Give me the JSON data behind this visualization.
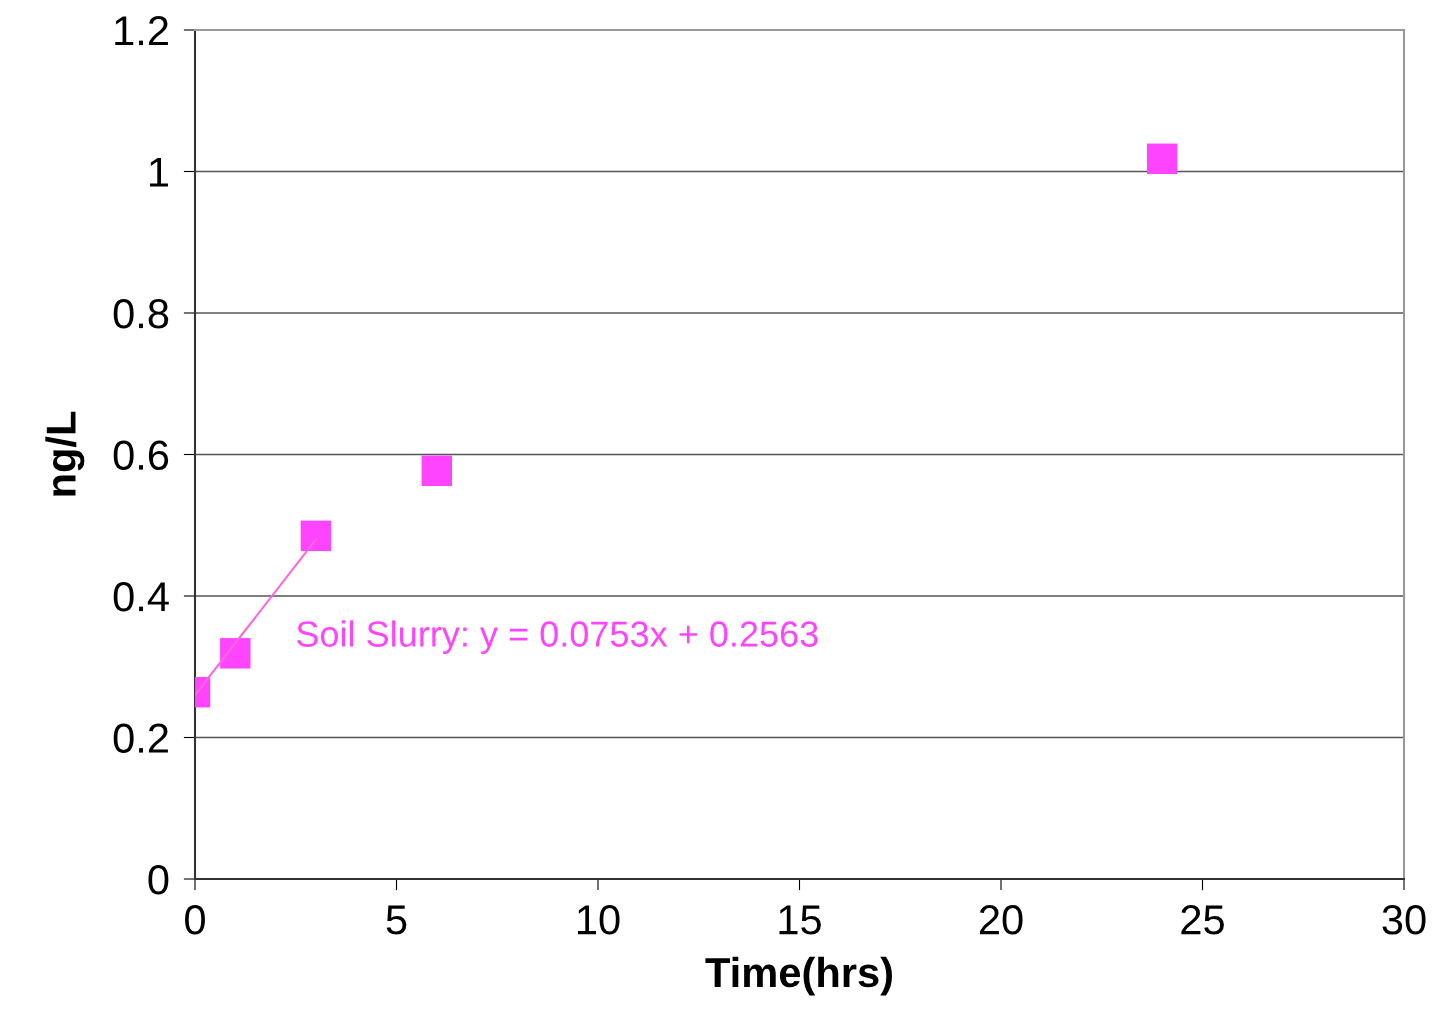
{
  "chart_data": {
    "type": "scatter",
    "xlabel": "Time(hrs)",
    "ylabel": "ng/L",
    "xlim": [
      0,
      30
    ],
    "xticks": [
      0,
      5,
      10,
      15,
      20,
      25,
      30
    ],
    "ylim": [
      0,
      1.2
    ],
    "yticks": [
      0,
      0.2,
      0.4,
      0.6,
      0.8,
      1,
      1.2
    ],
    "grid": "y",
    "series": [
      {
        "color": "#ff44ff",
        "marker": "square",
        "x": [
          0,
          1,
          3,
          6,
          24
        ],
        "values": [
          0.264,
          0.319,
          0.485,
          0.577,
          1.018
        ]
      },
      {
        "type": "line",
        "color": "#ff66dd",
        "x": [
          0,
          3
        ],
        "values": [
          0.26,
          0.48
        ],
        "line_style": "solid"
      }
    ],
    "annotations": [
      "Soil Slurry: y = 0.0753x + 0.2563"
    ]
  }
}
